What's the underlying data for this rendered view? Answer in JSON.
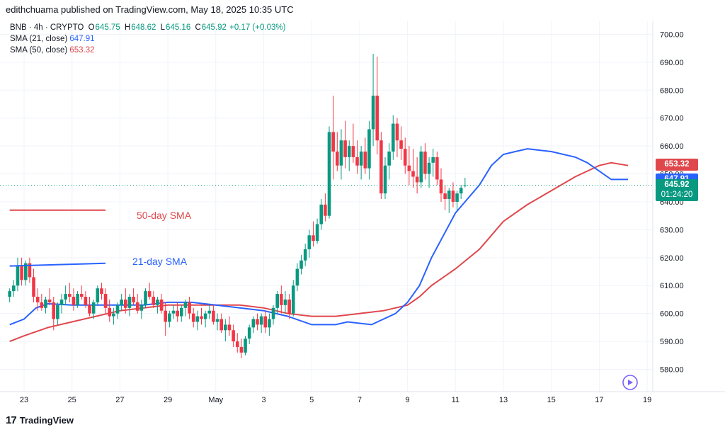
{
  "publisher": "edithchuama published on TradingView.com, May 18, 2025 10:35 UTC",
  "legend": {
    "symbol": "BNB · 4h · CRYPTO",
    "o_label": "O",
    "o": "645.75",
    "h_label": "H",
    "h": "648.62",
    "l_label": "L",
    "l": "645.16",
    "c_label": "C",
    "c": "645.92",
    "change": "+0.17 (+0.03%)",
    "sma21_label": "SMA (21, close)",
    "sma21": "647.91",
    "sma50_label": "SMA (50, close)",
    "sma50": "653.32"
  },
  "price_tags": {
    "sma50": "653.32",
    "sma21": "647.91",
    "last": "645.92",
    "countdown": "01:24:20"
  },
  "annotations": {
    "sma50_text": "50-day SMA",
    "sma21_text": "21-day SMA"
  },
  "logo": "TradingView",
  "colors": {
    "up": "#089981",
    "down": "#f23645",
    "sma21": "#2962ff",
    "sma50": "#e0474c",
    "grid": "#f0f3fa",
    "axis_text": "#131722"
  },
  "chart_data": {
    "type": "candlestick",
    "symbol": "BNB",
    "interval": "4h",
    "ylim": [
      574,
      706
    ],
    "y_ticks": [
      "580.00",
      "590.00",
      "600.00",
      "610.00",
      "620.00",
      "630.00",
      "640.00",
      "650.00",
      "660.00",
      "670.00",
      "680.00",
      "690.00",
      "700.00"
    ],
    "x_ticks": [
      {
        "label": "23",
        "day": 23
      },
      {
        "label": "25",
        "day": 25
      },
      {
        "label": "27",
        "day": 27
      },
      {
        "label": "29",
        "day": 29
      },
      {
        "label": "May",
        "day": 31
      },
      {
        "label": "3",
        "day": 33
      },
      {
        "label": "5",
        "day": 35
      },
      {
        "label": "7",
        "day": 37
      },
      {
        "label": "9",
        "day": 39
      },
      {
        "label": "11",
        "day": 41
      },
      {
        "label": "13",
        "day": 43
      },
      {
        "label": "15",
        "day": 45
      },
      {
        "label": "17",
        "day": 47
      },
      {
        "label": "19",
        "day": 49
      }
    ],
    "first_candle_day": 22.4,
    "candles_per_day": 6,
    "ohlc": [
      [
        606,
        609,
        604,
        608
      ],
      [
        608,
        612,
        606,
        610
      ],
      [
        610,
        620,
        608,
        617
      ],
      [
        617,
        620,
        610,
        612
      ],
      [
        612,
        619,
        610,
        618
      ],
      [
        618,
        620,
        611,
        613
      ],
      [
        613,
        616,
        604,
        606
      ],
      [
        606,
        609,
        601,
        604
      ],
      [
        604,
        607,
        601,
        602
      ],
      [
        602,
        606,
        600,
        605
      ],
      [
        605,
        609,
        603,
        604
      ],
      [
        604,
        606,
        594,
        598
      ],
      [
        598,
        604,
        596,
        603
      ],
      [
        603,
        607,
        600,
        605
      ],
      [
        605,
        610,
        603,
        607
      ],
      [
        607,
        611,
        604,
        606
      ],
      [
        606,
        609,
        601,
        603
      ],
      [
        603,
        608,
        602,
        607
      ],
      [
        607,
        610,
        605,
        606
      ],
      [
        606,
        608,
        602,
        603
      ],
      [
        603,
        606,
        599,
        600
      ],
      [
        600,
        605,
        598,
        604
      ],
      [
        604,
        610,
        603,
        609
      ],
      [
        609,
        611,
        605,
        607
      ],
      [
        607,
        609,
        600,
        602
      ],
      [
        602,
        605,
        597,
        599
      ],
      [
        599,
        602,
        596,
        600
      ],
      [
        600,
        604,
        598,
        603
      ],
      [
        603,
        607,
        601,
        605
      ],
      [
        605,
        609,
        600,
        602
      ],
      [
        602,
        607,
        599,
        606
      ],
      [
        606,
        609,
        603,
        604
      ],
      [
        604,
        607,
        600,
        601
      ],
      [
        601,
        605,
        598,
        603
      ],
      [
        603,
        609,
        602,
        608
      ],
      [
        608,
        611,
        605,
        606
      ],
      [
        606,
        608,
        602,
        603
      ],
      [
        603,
        606,
        600,
        605
      ],
      [
        605,
        607,
        600,
        601
      ],
      [
        601,
        604,
        592,
        597
      ],
      [
        597,
        601,
        595,
        600
      ],
      [
        600,
        603,
        598,
        601
      ],
      [
        601,
        604,
        597,
        599
      ],
      [
        599,
        603,
        597,
        602
      ],
      [
        602,
        605,
        599,
        604
      ],
      [
        604,
        606,
        598,
        600
      ],
      [
        600,
        602,
        595,
        597
      ],
      [
        597,
        601,
        594,
        599
      ],
      [
        599,
        602,
        596,
        598
      ],
      [
        598,
        601,
        595,
        600
      ],
      [
        600,
        603,
        598,
        601
      ],
      [
        601,
        603,
        596,
        597
      ],
      [
        597,
        600,
        594,
        598
      ],
      [
        598,
        600,
        593,
        594
      ],
      [
        594,
        598,
        590,
        596
      ],
      [
        596,
        599,
        592,
        594
      ],
      [
        594,
        596,
        588,
        590
      ],
      [
        590,
        593,
        586,
        588
      ],
      [
        588,
        591,
        584,
        586
      ],
      [
        586,
        592,
        585,
        591
      ],
      [
        591,
        596,
        589,
        595
      ],
      [
        595,
        599,
        593,
        598
      ],
      [
        598,
        600,
        594,
        596
      ],
      [
        596,
        600,
        593,
        599
      ],
      [
        599,
        601,
        593,
        595
      ],
      [
        595,
        600,
        592,
        598
      ],
      [
        598,
        603,
        596,
        602
      ],
      [
        602,
        608,
        600,
        607
      ],
      [
        607,
        610,
        600,
        603
      ],
      [
        603,
        608,
        600,
        605
      ],
      [
        605,
        607,
        598,
        600
      ],
      [
        600,
        612,
        599,
        610
      ],
      [
        610,
        618,
        608,
        616
      ],
      [
        616,
        621,
        614,
        619
      ],
      [
        619,
        625,
        617,
        623
      ],
      [
        623,
        630,
        620,
        628
      ],
      [
        628,
        633,
        624,
        626
      ],
      [
        626,
        634,
        625,
        632
      ],
      [
        632,
        641,
        630,
        639
      ],
      [
        639,
        643,
        633,
        635
      ],
      [
        635,
        667,
        634,
        665
      ],
      [
        665,
        678,
        648,
        658
      ],
      [
        658,
        665,
        651,
        653
      ],
      [
        653,
        666,
        648,
        662
      ],
      [
        662,
        669,
        652,
        656
      ],
      [
        656,
        662,
        651,
        660
      ],
      [
        660,
        668,
        654,
        656
      ],
      [
        656,
        662,
        650,
        653
      ],
      [
        653,
        660,
        648,
        658
      ],
      [
        658,
        663,
        650,
        652
      ],
      [
        652,
        669,
        648,
        666
      ],
      [
        666,
        693,
        660,
        678
      ],
      [
        678,
        692,
        657,
        662
      ],
      [
        662,
        665,
        641,
        643
      ],
      [
        643,
        656,
        641,
        653
      ],
      [
        653,
        661,
        648,
        658
      ],
      [
        658,
        671,
        655,
        668
      ],
      [
        668,
        670,
        656,
        662
      ],
      [
        662,
        667,
        655,
        659
      ],
      [
        659,
        663,
        650,
        653
      ],
      [
        653,
        660,
        646,
        651
      ],
      [
        651,
        659,
        645,
        649
      ],
      [
        649,
        656,
        643,
        647
      ],
      [
        647,
        660,
        645,
        658
      ],
      [
        658,
        661,
        648,
        650
      ],
      [
        650,
        656,
        645,
        654
      ],
      [
        654,
        659,
        649,
        656
      ],
      [
        656,
        658,
        646,
        648
      ],
      [
        648,
        652,
        640,
        643
      ],
      [
        643,
        646,
        637,
        641
      ],
      [
        641,
        645,
        636,
        644
      ],
      [
        644,
        647,
        638,
        640
      ],
      [
        640,
        644,
        637,
        643
      ],
      [
        643,
        646,
        641,
        645
      ],
      [
        645.75,
        648.62,
        645.16,
        645.92
      ]
    ],
    "sma21_points": [
      [
        22.4,
        596
      ],
      [
        23.0,
        598
      ],
      [
        23.5,
        602
      ],
      [
        24.0,
        603.5
      ],
      [
        25.0,
        603
      ],
      [
        26.0,
        603
      ],
      [
        27.0,
        603
      ],
      [
        28.0,
        603
      ],
      [
        29.0,
        604
      ],
      [
        30.0,
        604
      ],
      [
        31.0,
        603
      ],
      [
        32.0,
        602
      ],
      [
        33.0,
        601
      ],
      [
        34.0,
        599
      ],
      [
        35.0,
        596
      ],
      [
        36.0,
        596
      ],
      [
        36.5,
        597
      ],
      [
        37.5,
        596
      ],
      [
        38.5,
        600
      ],
      [
        39.0,
        604
      ],
      [
        39.5,
        610
      ],
      [
        40.0,
        620
      ],
      [
        40.5,
        628
      ],
      [
        41.0,
        636
      ],
      [
        41.5,
        641
      ],
      [
        42.0,
        646
      ],
      [
        42.5,
        653
      ],
      [
        43.0,
        657
      ],
      [
        43.5,
        658
      ],
      [
        44.0,
        659
      ],
      [
        45.0,
        658
      ],
      [
        46.0,
        656
      ],
      [
        46.5,
        654
      ],
      [
        47.0,
        651
      ],
      [
        47.5,
        648
      ],
      [
        48.2,
        648
      ]
    ],
    "sma50_points": [
      [
        22.4,
        590
      ],
      [
        23.0,
        592
      ],
      [
        24.0,
        595
      ],
      [
        25.0,
        597
      ],
      [
        26.0,
        599
      ],
      [
        27.0,
        601
      ],
      [
        28.0,
        602
      ],
      [
        29.0,
        603
      ],
      [
        30.0,
        603
      ],
      [
        31.0,
        603
      ],
      [
        32.0,
        603
      ],
      [
        33.0,
        602
      ],
      [
        34.0,
        600
      ],
      [
        35.0,
        599
      ],
      [
        36.0,
        599
      ],
      [
        37.0,
        600
      ],
      [
        38.0,
        601
      ],
      [
        39.0,
        603
      ],
      [
        39.5,
        606
      ],
      [
        40.0,
        610
      ],
      [
        41.0,
        616
      ],
      [
        42.0,
        623
      ],
      [
        42.5,
        628
      ],
      [
        43.0,
        633
      ],
      [
        44.0,
        639
      ],
      [
        45.0,
        644
      ],
      [
        46.0,
        649
      ],
      [
        46.5,
        651
      ],
      [
        47.0,
        653
      ],
      [
        47.5,
        654
      ],
      [
        48.2,
        653
      ]
    ],
    "drawn_sma50_line": {
      "from": [
        22.4,
        637
      ],
      "to": [
        26.4,
        637
      ]
    },
    "drawn_sma21_line": {
      "from": [
        22.4,
        617
      ],
      "to": [
        26.4,
        618
      ]
    }
  }
}
